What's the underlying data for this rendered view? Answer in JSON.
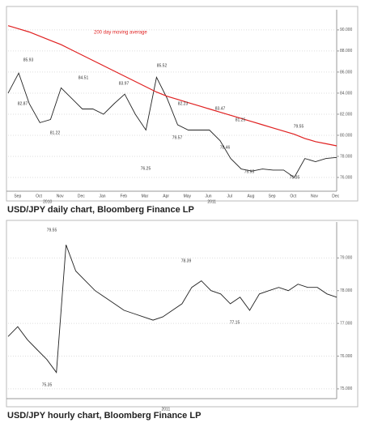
{
  "chart_data": [
    {
      "type": "line",
      "caption": "USD/JPY daily chart, Bloomberg Finance LP",
      "ylim": [
        75,
        91.3
      ],
      "yticks": [
        {
          "value": 90,
          "label": "90.000"
        },
        {
          "value": 88,
          "label": "88.000"
        },
        {
          "value": 86,
          "label": "86.000"
        },
        {
          "value": 84,
          "label": "84.000"
        },
        {
          "value": 82,
          "label": "82.000"
        },
        {
          "value": 80,
          "label": "80.000"
        },
        {
          "value": 78,
          "label": "78.000"
        },
        {
          "value": 76,
          "label": "76.000"
        }
      ],
      "categories": [
        "Sep",
        null,
        "Oct",
        null,
        "Nov",
        null,
        "Dec",
        null,
        "Jan",
        null,
        "Feb",
        null,
        "Mar",
        null,
        "Apr",
        null,
        "May",
        null,
        "Jun",
        null,
        "Jul",
        null,
        "Aug",
        null,
        "Sep",
        null,
        "Oct",
        null,
        "Nov",
        null,
        "Dec",
        null
      ],
      "years": [
        "2010",
        "2011"
      ],
      "grid": true,
      "series": [
        {
          "name": "USD/JPY",
          "color": "#222222",
          "values": [
            84.0,
            85.9,
            83.0,
            81.2,
            81.5,
            84.5,
            83.5,
            82.5,
            82.5,
            82.0,
            83.0,
            83.9,
            82.0,
            80.5,
            85.5,
            83.5,
            81.0,
            80.5,
            80.5,
            80.5,
            79.5,
            77.8,
            76.8,
            76.6,
            76.8,
            76.7,
            76.7,
            76.0,
            77.8,
            77.5,
            77.8,
            77.9
          ]
        },
        {
          "name": "200 day moving average",
          "color": "#e02020",
          "values": [
            90.4,
            90.1,
            89.8,
            89.4,
            89.0,
            88.6,
            88.1,
            87.6,
            87.1,
            86.6,
            86.1,
            85.6,
            85.1,
            84.6,
            84.1,
            83.7,
            83.4,
            83.1,
            82.8,
            82.5,
            82.2,
            81.9,
            81.6,
            81.3,
            81.0,
            80.7,
            80.4,
            80.1,
            79.7,
            79.4,
            79.2,
            79.0
          ]
        }
      ],
      "annotations": [
        "85.93",
        "82.87",
        "81.22",
        "84.51",
        "83.97",
        "85.52",
        "76.25",
        "82.23",
        "79.57",
        "83.47",
        "81.25",
        "78.46",
        "75.95",
        "75.35",
        "79.55"
      ]
    },
    {
      "type": "line",
      "caption": "USD/JPY hourly chart, Bloomberg Finance LP",
      "ylim": [
        74.8,
        79.9
      ],
      "yticks": [
        {
          "value": 79,
          "label": "79.000"
        },
        {
          "value": 78,
          "label": "78.000"
        },
        {
          "value": 77,
          "label": "77.000"
        },
        {
          "value": 76,
          "label": "76.000"
        },
        {
          "value": 75,
          "label": "75.000"
        }
      ],
      "years": [
        "2011"
      ],
      "grid": true,
      "series": [
        {
          "name": "USD/JPY hourly",
          "color": "#222222",
          "values": [
            76.6,
            76.9,
            76.5,
            76.2,
            75.9,
            75.5,
            79.4,
            78.6,
            78.3,
            78.0,
            77.8,
            77.6,
            77.4,
            77.3,
            77.2,
            77.1,
            77.2,
            77.4,
            77.6,
            78.1,
            78.3,
            78.0,
            77.9,
            77.6,
            77.8,
            77.4,
            77.9,
            78.0,
            78.1,
            78.0,
            78.2,
            78.1,
            78.1,
            77.9,
            77.8
          ]
        }
      ],
      "annotations": [
        "79.55",
        "78.39",
        "77.15",
        "75.35"
      ]
    }
  ]
}
